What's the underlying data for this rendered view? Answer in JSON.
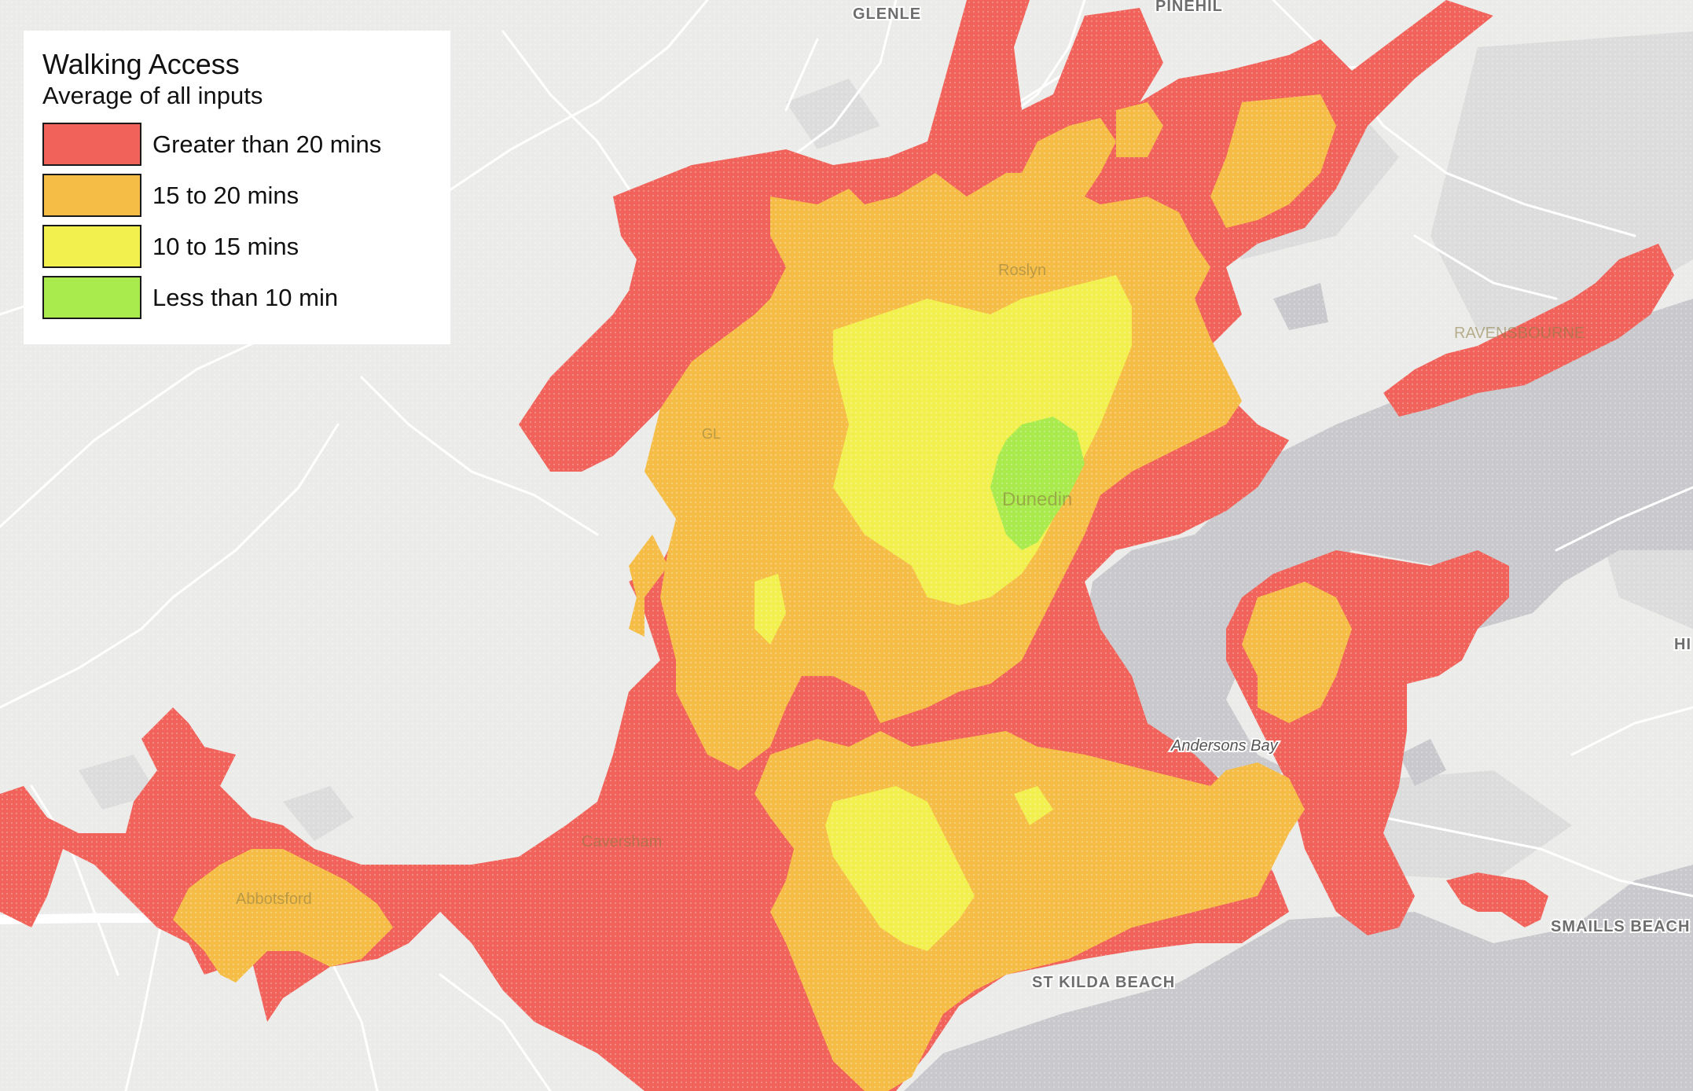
{
  "legend": {
    "title": "Walking Access",
    "subtitle": "Average of all inputs",
    "items": [
      {
        "label": "Greater than 20 mins",
        "color": "#f0625a"
      },
      {
        "label": "15 to 20 mins",
        "color": "#f5bd46"
      },
      {
        "label": "10 to 15 mins",
        "color": "#f2f04e"
      },
      {
        "label": "Less than 10 min",
        "color": "#a9ea4c"
      }
    ]
  },
  "places": {
    "glenleith": "GLENLE",
    "pine_hill": "PINEHIL",
    "andersons_bay": "Andersons Bay",
    "st_kilda_beach": "ST KILDA BEACH",
    "smaills_beach": "SMAILLS BEACH",
    "hi_edge": "HI",
    "ravensbourne": "RAVENSBOURNE",
    "dunedin": "Dunedin",
    "glenross": "GL",
    "roslyn": "Roslyn",
    "caversham": "Caversham",
    "abbotsford": "Abbotsford"
  },
  "colors": {
    "background": "#ebebe9",
    "water": "#c9c9cd",
    "road": "#ffffff"
  }
}
